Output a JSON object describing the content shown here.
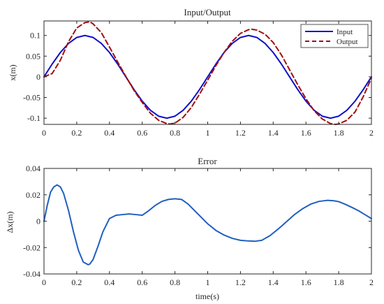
{
  "chart_data": [
    {
      "type": "line",
      "title": "Input/Output",
      "xlabel": "",
      "ylabel": "x(m)",
      "xlim": [
        0,
        2
      ],
      "ylim": [
        -0.115,
        0.135
      ],
      "xticks": [
        0,
        0.2,
        0.4,
        0.6,
        0.8,
        1,
        1.2,
        1.4,
        1.6,
        1.8,
        2
      ],
      "xtick_labels": [
        "0",
        "0.2",
        "0.4",
        "0.6",
        "0.8",
        "1",
        "1.2",
        "1.4",
        "1.6",
        "1.8",
        "2"
      ],
      "yticks": [
        -0.1,
        -0.05,
        0,
        0.05,
        0.1
      ],
      "ytick_labels": [
        "-0.1",
        "-0.05",
        "0",
        "0.05",
        "0.1"
      ],
      "grid": false,
      "legend": "top-right",
      "series": [
        {
          "name": "Input",
          "color": "#1010c8",
          "style": "solid",
          "x": [
            0,
            0.05,
            0.1,
            0.15,
            0.2,
            0.25,
            0.3,
            0.35,
            0.4,
            0.45,
            0.5,
            0.55,
            0.6,
            0.65,
            0.7,
            0.75,
            0.8,
            0.85,
            0.9,
            0.95,
            1.0,
            1.05,
            1.1,
            1.15,
            1.2,
            1.25,
            1.3,
            1.35,
            1.4,
            1.45,
            1.5,
            1.55,
            1.6,
            1.65,
            1.7,
            1.75,
            1.8,
            1.85,
            1.9,
            1.95,
            2.0
          ],
          "y": [
            0,
            0.0309,
            0.0588,
            0.0809,
            0.0951,
            0.1,
            0.0951,
            0.0809,
            0.0588,
            0.0309,
            0,
            -0.0309,
            -0.0588,
            -0.0809,
            -0.0951,
            -0.1,
            -0.0951,
            -0.0809,
            -0.0588,
            -0.0309,
            0,
            0.0309,
            0.0588,
            0.0809,
            0.0951,
            0.1,
            0.0951,
            0.0809,
            0.0588,
            0.0309,
            0,
            -0.0309,
            -0.0588,
            -0.0809,
            -0.0951,
            -0.1,
            -0.0951,
            -0.0809,
            -0.0588,
            -0.0309,
            0
          ]
        },
        {
          "name": "Output",
          "color": "#a01010",
          "style": "dashed",
          "x": [
            0,
            0.05,
            0.1,
            0.15,
            0.2,
            0.25,
            0.28,
            0.3,
            0.35,
            0.4,
            0.45,
            0.5,
            0.55,
            0.6,
            0.65,
            0.7,
            0.75,
            0.77,
            0.8,
            0.85,
            0.9,
            0.95,
            1.0,
            1.05,
            1.1,
            1.15,
            1.2,
            1.25,
            1.27,
            1.3,
            1.35,
            1.4,
            1.45,
            1.5,
            1.55,
            1.6,
            1.65,
            1.7,
            1.75,
            1.78,
            1.8,
            1.85,
            1.9,
            1.95,
            2.0
          ],
          "y": [
            0,
            0.008,
            0.04,
            0.085,
            0.118,
            0.131,
            0.133,
            0.128,
            0.107,
            0.072,
            0.036,
            0.001,
            -0.033,
            -0.062,
            -0.088,
            -0.105,
            -0.113,
            -0.114,
            -0.112,
            -0.098,
            -0.074,
            -0.042,
            -0.008,
            0.027,
            0.059,
            0.086,
            0.105,
            0.114,
            0.115,
            0.113,
            0.103,
            0.083,
            0.053,
            0.017,
            -0.019,
            -0.053,
            -0.082,
            -0.102,
            -0.113,
            -0.115,
            -0.114,
            -0.105,
            -0.085,
            -0.048,
            -0.003
          ]
        }
      ]
    },
    {
      "type": "line",
      "title": "Error",
      "xlabel": "time(s)",
      "ylabel": "Δx(m)",
      "xlim": [
        0,
        2
      ],
      "ylim": [
        -0.04,
        0.04
      ],
      "xticks": [
        0,
        0.2,
        0.4,
        0.6,
        0.8,
        1,
        1.2,
        1.4,
        1.6,
        1.8,
        2
      ],
      "xtick_labels": [
        "0",
        "0.2",
        "0.4",
        "0.6",
        "0.8",
        "1",
        "1.2",
        "1.4",
        "1.6",
        "1.8",
        "2"
      ],
      "yticks": [
        -0.04,
        -0.02,
        0,
        0.02,
        0.04
      ],
      "ytick_labels": [
        "-0.04",
        "-0.02",
        "0",
        "0.02",
        "0.04"
      ],
      "grid": false,
      "series": [
        {
          "color": "#1f5fbf",
          "style": "solid",
          "x": [
            0,
            0.02,
            0.04,
            0.06,
            0.08,
            0.1,
            0.12,
            0.15,
            0.18,
            0.21,
            0.24,
            0.27,
            0.28,
            0.3,
            0.33,
            0.36,
            0.4,
            0.44,
            0.48,
            0.52,
            0.56,
            0.6,
            0.64,
            0.68,
            0.72,
            0.76,
            0.8,
            0.84,
            0.88,
            0.92,
            0.96,
            1.0,
            1.05,
            1.1,
            1.15,
            1.2,
            1.25,
            1.29,
            1.33,
            1.38,
            1.43,
            1.48,
            1.53,
            1.58,
            1.63,
            1.68,
            1.73,
            1.77,
            1.8,
            1.84,
            1.88,
            1.92,
            1.96,
            2.0
          ],
          "y": [
            0.0,
            0.012,
            0.022,
            0.026,
            0.0275,
            0.026,
            0.021,
            0.008,
            -0.008,
            -0.022,
            -0.031,
            -0.033,
            -0.0325,
            -0.029,
            -0.019,
            -0.008,
            0.002,
            0.0045,
            0.005,
            0.0055,
            0.005,
            0.0045,
            0.008,
            0.012,
            0.015,
            0.0165,
            0.017,
            0.0165,
            0.013,
            0.008,
            0.003,
            -0.002,
            -0.007,
            -0.0105,
            -0.013,
            -0.0145,
            -0.015,
            -0.0152,
            -0.0145,
            -0.011,
            -0.006,
            -0.0005,
            0.005,
            0.0095,
            0.013,
            0.015,
            0.0158,
            0.0155,
            0.0148,
            0.0128,
            0.0105,
            0.008,
            0.005,
            0.002
          ]
        }
      ]
    }
  ]
}
